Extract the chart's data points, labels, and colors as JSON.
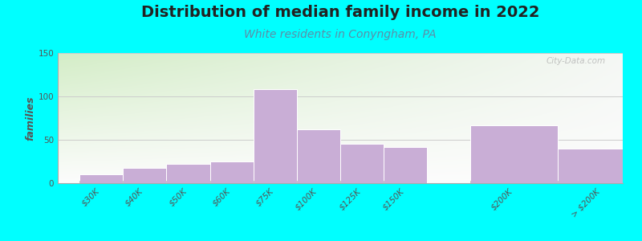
{
  "title": "Distribution of median family income in 2022",
  "subtitle": "White residents in Conyngham, PA",
  "ylabel": "families",
  "categories": [
    "$30K",
    "$40K",
    "$50K",
    "$60K",
    "$75K",
    "$100K",
    "$125K",
    "$150K",
    "$200K",
    "> $200K"
  ],
  "values": [
    10,
    18,
    22,
    25,
    108,
    62,
    45,
    42,
    67,
    40
  ],
  "bar_color": "#c9aed6",
  "bar_edge_color": "#ffffff",
  "background_color": "#00ffff",
  "ylim": [
    0,
    150
  ],
  "yticks": [
    0,
    50,
    100,
    150
  ],
  "title_fontsize": 14,
  "subtitle_fontsize": 10,
  "ylabel_fontsize": 9,
  "tick_fontsize": 7.5,
  "watermark": "City-Data.com",
  "grid_color": "#cccccc",
  "spine_color": "#aaaaaa",
  "text_color": "#555555",
  "subtitle_color": "#5b8fa8",
  "title_color": "#222222",
  "bar_positions": [
    0,
    1,
    2,
    3,
    4,
    5,
    6,
    7,
    9,
    11
  ],
  "bar_widths": [
    1,
    1,
    1,
    1,
    1,
    1,
    1,
    1,
    2,
    2
  ]
}
